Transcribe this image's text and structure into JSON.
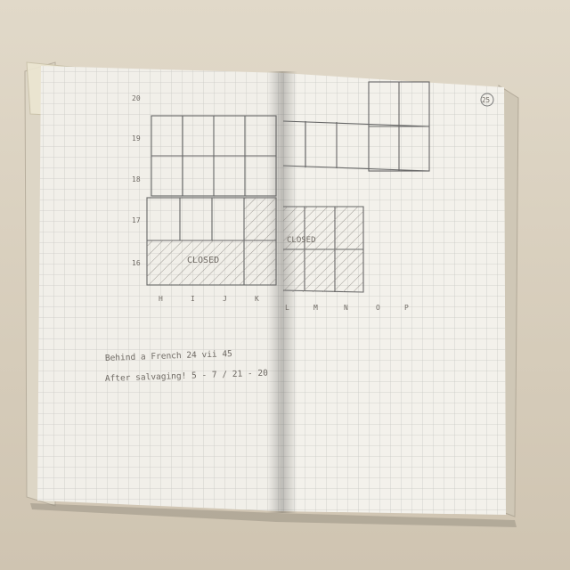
{
  "notebook": {
    "page_number": "25",
    "left_page": {
      "row_labels": [
        "20",
        "19",
        "18",
        "17",
        "16"
      ],
      "column_labels": [
        "H",
        "I",
        "J",
        "K"
      ],
      "shaded_area_label": "CLOSED",
      "note_lines": [
        "Behind a French  24 vii 45",
        "After salvaging!  5 - 7 / 21 - 20"
      ]
    },
    "right_page": {
      "column_labels": [
        "L",
        "M",
        "N",
        "O",
        "P"
      ],
      "shaded_area_label": "CLOSED"
    }
  }
}
